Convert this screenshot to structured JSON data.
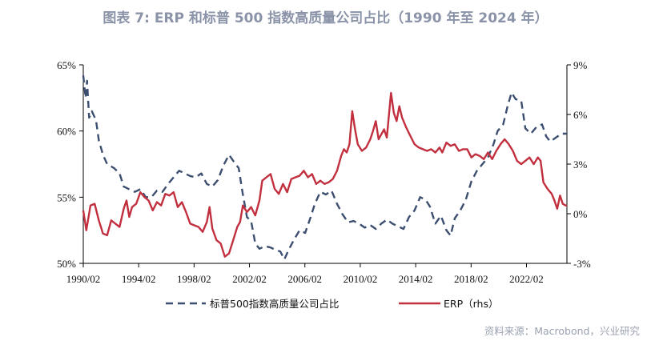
{
  "title": "图表 7:  ERP 和标普 500 指数高质量公司占比（1990 年至 2024 年）",
  "source": "资料来源：Macrobond，兴业研究",
  "colors": {
    "share": "#3d4f70",
    "erp": "#c2303f",
    "axis": "#000000"
  },
  "chart_data": {
    "type": "line",
    "x_range": [
      1990.08,
      2025.0
    ],
    "x_ticks": [
      "1990/02",
      "1994/02",
      "1998/02",
      "2002/02",
      "2006/02",
      "2010/02",
      "2014/02",
      "2018/02",
      "2022/02"
    ],
    "x_tick_values": [
      1990.08,
      1994.08,
      1998.08,
      2002.08,
      2006.08,
      2010.08,
      2014.08,
      2018.08,
      2022.08
    ],
    "y_left": {
      "range": [
        50,
        65
      ],
      "ticks": [
        "50%",
        "55%",
        "60%",
        "65%"
      ],
      "tick_values": [
        50,
        55,
        60,
        65
      ]
    },
    "y_right": {
      "range": [
        -3,
        9
      ],
      "ticks": [
        "-3%",
        "0%",
        "3%",
        "6%",
        "9%"
      ],
      "tick_values": [
        -3,
        0,
        3,
        6,
        9
      ]
    },
    "legend": {
      "placement": "bottom",
      "entries": [
        "标普500指数高质量公司占比",
        "ERP（rhs）"
      ]
    },
    "series": [
      {
        "name": "标普500指数高质量公司占比",
        "axis": "left",
        "style": "dashed",
        "points": [
          [
            1990.08,
            64.2
          ],
          [
            1990.25,
            62.5
          ],
          [
            1990.35,
            63.8
          ],
          [
            1990.5,
            61.0
          ],
          [
            1990.7,
            61.5
          ],
          [
            1991.0,
            60.8
          ],
          [
            1991.2,
            59.3
          ],
          [
            1991.5,
            58.2
          ],
          [
            1991.8,
            57.5
          ],
          [
            1992.3,
            57.2
          ],
          [
            1992.7,
            56.8
          ],
          [
            1993.0,
            55.8
          ],
          [
            1993.4,
            55.6
          ],
          [
            1993.8,
            55.4
          ],
          [
            1994.2,
            55.6
          ],
          [
            1994.6,
            55.0
          ],
          [
            1995.0,
            55.0
          ],
          [
            1995.4,
            55.5
          ],
          [
            1995.8,
            55.4
          ],
          [
            1996.2,
            56.0
          ],
          [
            1996.6,
            56.5
          ],
          [
            1997.0,
            57.0
          ],
          [
            1997.4,
            56.8
          ],
          [
            1997.8,
            56.6
          ],
          [
            1998.2,
            56.5
          ],
          [
            1998.6,
            56.8
          ],
          [
            1999.0,
            56.0
          ],
          [
            1999.4,
            55.8
          ],
          [
            1999.8,
            56.3
          ],
          [
            2000.2,
            57.4
          ],
          [
            2000.6,
            58.2
          ],
          [
            2001.0,
            57.6
          ],
          [
            2001.3,
            57.2
          ],
          [
            2001.6,
            55.2
          ],
          [
            2001.9,
            53.5
          ],
          [
            2002.2,
            53.2
          ],
          [
            2002.5,
            51.5
          ],
          [
            2002.8,
            51.1
          ],
          [
            2003.2,
            51.3
          ],
          [
            2003.6,
            51.2
          ],
          [
            2004.0,
            51.0
          ],
          [
            2004.3,
            50.9
          ],
          [
            2004.6,
            50.3
          ],
          [
            2004.9,
            51.0
          ],
          [
            2005.3,
            51.8
          ],
          [
            2005.7,
            52.5
          ],
          [
            2006.1,
            52.3
          ],
          [
            2006.5,
            53.5
          ],
          [
            2006.8,
            54.5
          ],
          [
            2007.2,
            55.4
          ],
          [
            2007.6,
            55.2
          ],
          [
            2008.0,
            55.5
          ],
          [
            2008.4,
            54.5
          ],
          [
            2008.8,
            53.7
          ],
          [
            2009.2,
            53.1
          ],
          [
            2009.6,
            53.2
          ],
          [
            2010.0,
            53.0
          ],
          [
            2010.4,
            52.7
          ],
          [
            2010.8,
            52.9
          ],
          [
            2011.2,
            52.6
          ],
          [
            2011.6,
            53.0
          ],
          [
            2012.0,
            53.3
          ],
          [
            2012.4,
            53.0
          ],
          [
            2012.8,
            52.8
          ],
          [
            2013.2,
            52.6
          ],
          [
            2013.6,
            53.5
          ],
          [
            2014.0,
            54.0
          ],
          [
            2014.4,
            55.0
          ],
          [
            2014.8,
            54.8
          ],
          [
            2015.1,
            54.3
          ],
          [
            2015.5,
            53.0
          ],
          [
            2015.9,
            53.6
          ],
          [
            2016.3,
            52.5
          ],
          [
            2016.6,
            52.1
          ],
          [
            2016.9,
            53.4
          ],
          [
            2017.3,
            54.0
          ],
          [
            2017.7,
            54.8
          ],
          [
            2018.1,
            56.2
          ],
          [
            2018.5,
            57.0
          ],
          [
            2018.9,
            57.5
          ],
          [
            2019.3,
            58.0
          ],
          [
            2019.7,
            59.0
          ],
          [
            2020.0,
            60.0
          ],
          [
            2020.4,
            60.5
          ],
          [
            2020.7,
            61.8
          ],
          [
            2021.0,
            62.9
          ],
          [
            2021.3,
            62.4
          ],
          [
            2021.7,
            62.3
          ],
          [
            2022.0,
            60.2
          ],
          [
            2022.4,
            59.8
          ],
          [
            2022.8,
            60.3
          ],
          [
            2023.2,
            60.5
          ],
          [
            2023.5,
            59.6
          ],
          [
            2023.8,
            59.2
          ],
          [
            2024.2,
            59.5
          ],
          [
            2024.6,
            59.8
          ],
          [
            2025.0,
            59.8
          ]
        ]
      },
      {
        "name": "ERP（rhs）",
        "axis": "right",
        "style": "solid",
        "points": [
          [
            1990.08,
            0.2
          ],
          [
            1990.3,
            -1.0
          ],
          [
            1990.6,
            0.5
          ],
          [
            1990.9,
            0.6
          ],
          [
            1991.2,
            -0.4
          ],
          [
            1991.5,
            -1.2
          ],
          [
            1991.8,
            -1.3
          ],
          [
            1992.1,
            -0.4
          ],
          [
            1992.4,
            -0.6
          ],
          [
            1992.7,
            -0.8
          ],
          [
            1993.0,
            0.3
          ],
          [
            1993.2,
            0.8
          ],
          [
            1993.4,
            -0.2
          ],
          [
            1993.6,
            0.4
          ],
          [
            1993.9,
            0.6
          ],
          [
            1994.2,
            1.3
          ],
          [
            1994.5,
            1.0
          ],
          [
            1994.8,
            0.8
          ],
          [
            1995.1,
            0.2
          ],
          [
            1995.4,
            0.7
          ],
          [
            1995.7,
            0.5
          ],
          [
            1996.0,
            1.2
          ],
          [
            1996.3,
            1.1
          ],
          [
            1996.6,
            1.3
          ],
          [
            1996.9,
            0.4
          ],
          [
            1997.2,
            0.7
          ],
          [
            1997.5,
            0.1
          ],
          [
            1997.8,
            -0.6
          ],
          [
            1998.1,
            -0.7
          ],
          [
            1998.4,
            -0.8
          ],
          [
            1998.7,
            -1.1
          ],
          [
            1999.0,
            -0.5
          ],
          [
            1999.2,
            0.4
          ],
          [
            1999.4,
            -0.9
          ],
          [
            1999.7,
            -1.6
          ],
          [
            2000.0,
            -1.8
          ],
          [
            2000.3,
            -2.6
          ],
          [
            2000.6,
            -2.4
          ],
          [
            2000.9,
            -1.6
          ],
          [
            2001.2,
            -0.8
          ],
          [
            2001.4,
            -0.5
          ],
          [
            2001.6,
            0.5
          ],
          [
            2001.9,
            0.1
          ],
          [
            2002.2,
            0.4
          ],
          [
            2002.5,
            -0.1
          ],
          [
            2002.8,
            0.8
          ],
          [
            2003.0,
            2.0
          ],
          [
            2003.3,
            2.2
          ],
          [
            2003.6,
            2.4
          ],
          [
            2003.9,
            1.5
          ],
          [
            2004.2,
            1.2
          ],
          [
            2004.5,
            1.8
          ],
          [
            2004.8,
            1.3
          ],
          [
            2005.1,
            2.1
          ],
          [
            2005.4,
            2.2
          ],
          [
            2005.7,
            2.3
          ],
          [
            2006.0,
            2.6
          ],
          [
            2006.3,
            2.2
          ],
          [
            2006.6,
            2.4
          ],
          [
            2006.9,
            1.8
          ],
          [
            2007.2,
            2.0
          ],
          [
            2007.5,
            1.8
          ],
          [
            2007.8,
            1.9
          ],
          [
            2008.1,
            2.1
          ],
          [
            2008.4,
            2.6
          ],
          [
            2008.7,
            3.5
          ],
          [
            2008.9,
            3.9
          ],
          [
            2009.1,
            3.7
          ],
          [
            2009.3,
            4.2
          ],
          [
            2009.5,
            6.2
          ],
          [
            2009.7,
            5.1
          ],
          [
            2009.9,
            4.2
          ],
          [
            2010.2,
            3.8
          ],
          [
            2010.5,
            4.0
          ],
          [
            2010.8,
            4.5
          ],
          [
            2011.0,
            5.0
          ],
          [
            2011.2,
            5.6
          ],
          [
            2011.4,
            4.5
          ],
          [
            2011.6,
            4.8
          ],
          [
            2011.8,
            5.1
          ],
          [
            2012.0,
            4.6
          ],
          [
            2012.3,
            7.3
          ],
          [
            2012.5,
            6.1
          ],
          [
            2012.7,
            5.6
          ],
          [
            2012.9,
            6.5
          ],
          [
            2013.1,
            5.8
          ],
          [
            2013.4,
            5.2
          ],
          [
            2013.7,
            4.7
          ],
          [
            2014.0,
            4.2
          ],
          [
            2014.3,
            4.0
          ],
          [
            2014.6,
            3.9
          ],
          [
            2014.9,
            3.8
          ],
          [
            2015.2,
            3.9
          ],
          [
            2015.5,
            3.7
          ],
          [
            2015.8,
            4.0
          ],
          [
            2016.0,
            3.7
          ],
          [
            2016.3,
            4.3
          ],
          [
            2016.6,
            4.1
          ],
          [
            2016.9,
            4.2
          ],
          [
            2017.2,
            3.8
          ],
          [
            2017.5,
            3.9
          ],
          [
            2017.8,
            3.9
          ],
          [
            2018.1,
            3.4
          ],
          [
            2018.4,
            3.6
          ],
          [
            2018.7,
            3.5
          ],
          [
            2019.0,
            3.3
          ],
          [
            2019.3,
            3.7
          ],
          [
            2019.6,
            3.3
          ],
          [
            2019.9,
            3.8
          ],
          [
            2020.2,
            4.2
          ],
          [
            2020.5,
            4.5
          ],
          [
            2020.8,
            4.2
          ],
          [
            2021.1,
            3.8
          ],
          [
            2021.4,
            3.2
          ],
          [
            2021.7,
            3.0
          ],
          [
            2022.0,
            3.2
          ],
          [
            2022.3,
            3.4
          ],
          [
            2022.6,
            3.0
          ],
          [
            2022.9,
            3.4
          ],
          [
            2023.1,
            3.2
          ],
          [
            2023.3,
            1.9
          ],
          [
            2023.6,
            1.5
          ],
          [
            2023.9,
            1.2
          ],
          [
            2024.1,
            0.8
          ],
          [
            2024.3,
            0.3
          ],
          [
            2024.5,
            1.1
          ],
          [
            2024.7,
            0.6
          ],
          [
            2024.9,
            0.5
          ],
          [
            2025.0,
            0.5
          ]
        ]
      }
    ]
  }
}
